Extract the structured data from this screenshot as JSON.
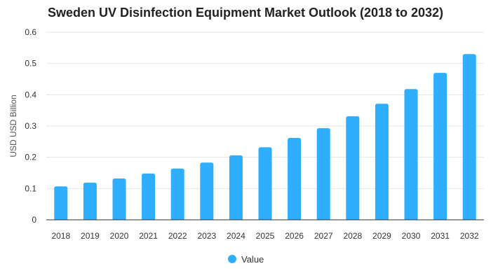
{
  "chart_data": {
    "type": "bar",
    "title": "Sweden UV Disinfection Equipment Market Outlook (2018 to 2032)",
    "xlabel": "",
    "ylabel": "USD USD Billion",
    "categories": [
      "2018",
      "2019",
      "2020",
      "2021",
      "2022",
      "2023",
      "2024",
      "2025",
      "2026",
      "2027",
      "2028",
      "2029",
      "2030",
      "2031",
      "2032"
    ],
    "series": [
      {
        "name": "Value",
        "color": "#2eaefc",
        "values": [
          0.107,
          0.119,
          0.132,
          0.148,
          0.164,
          0.183,
          0.206,
          0.232,
          0.262,
          0.293,
          0.331,
          0.371,
          0.418,
          0.47,
          0.53
        ]
      }
    ],
    "ylim": [
      0,
      0.6
    ],
    "yticks": [
      "0",
      "0.1",
      "0.2",
      "0.3",
      "0.4",
      "0.5",
      "0.6"
    ],
    "grid": true,
    "legend": "bottom-center"
  }
}
